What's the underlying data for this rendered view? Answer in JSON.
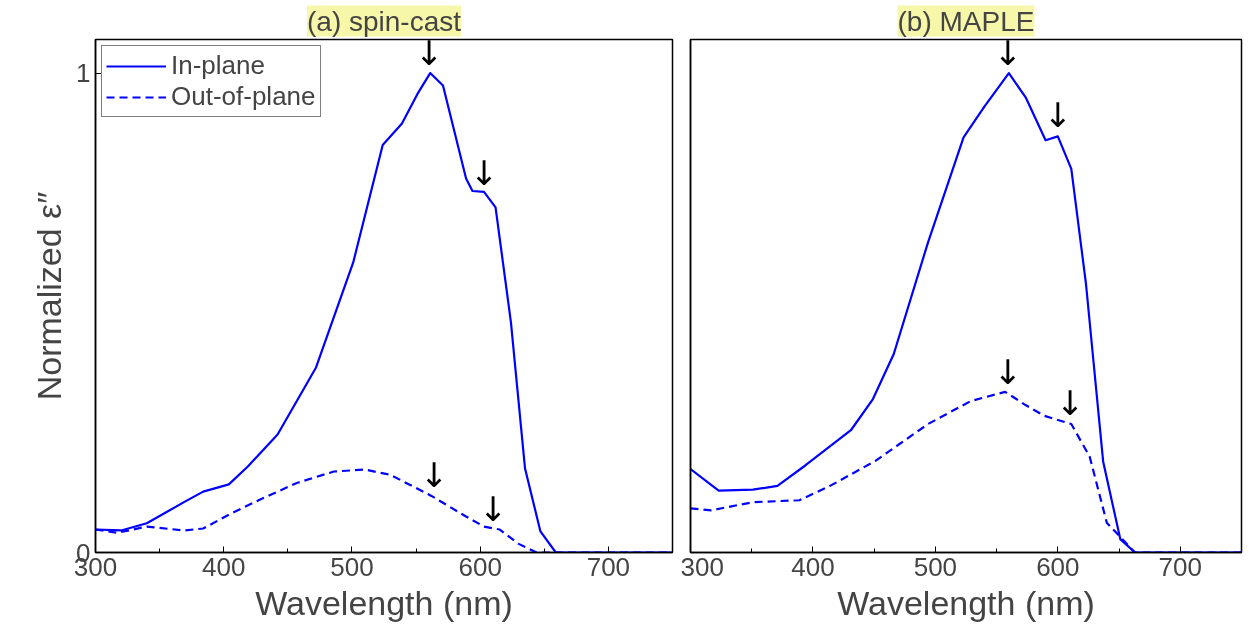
{
  "chart_data": [
    {
      "type": "line",
      "title": "(a) spin-cast",
      "xlabel": "Wavelength (nm)",
      "ylabel": "Normalized ε″",
      "xlim": [
        300,
        750
      ],
      "xticks": [
        300,
        400,
        500,
        600,
        700
      ],
      "ylim": [
        0,
        1.07
      ],
      "yticks": [
        0,
        1
      ],
      "legend": "top left",
      "grid": false,
      "series": [
        {
          "name": "In-plane",
          "color": "#0000ff",
          "line_style": "solid",
          "x": [
            300,
            320,
            340,
            369,
            384,
            404,
            419,
            442,
            472,
            501,
            524,
            539,
            551,
            561,
            571,
            589,
            594,
            603,
            612,
            624,
            635,
            647,
            659,
            700,
            750
          ],
          "values": [
            0.048,
            0.046,
            0.061,
            0.105,
            0.127,
            0.142,
            0.18,
            0.246,
            0.386,
            0.605,
            0.85,
            0.895,
            0.956,
            1.0,
            0.974,
            0.78,
            0.754,
            0.752,
            0.72,
            0.48,
            0.175,
            0.044,
            0,
            0,
            0
          ]
        },
        {
          "name": "Out-of-plane",
          "color": "#0000ff",
          "line_style": "dashed",
          "x": [
            300,
            317,
            340,
            369,
            384,
            404,
            428,
            457,
            486,
            510,
            530,
            562,
            589,
            603,
            615,
            630,
            644,
            700,
            750
          ],
          "values": [
            0.048,
            0.041,
            0.054,
            0.046,
            0.05,
            0.079,
            0.11,
            0.145,
            0.169,
            0.173,
            0.162,
            0.118,
            0.075,
            0.054,
            0.048,
            0.018,
            0,
            0,
            0
          ]
        }
      ],
      "annotations": [
        {
          "text": "↓",
          "x": 560,
          "y": 1.0
        },
        {
          "text": "↓",
          "x": 603,
          "y": 0.75
        },
        {
          "text": "↓",
          "x": 564,
          "y": 0.12
        },
        {
          "text": "↓",
          "x": 610,
          "y": 0.05
        }
      ]
    },
    {
      "type": "line",
      "title": "(b) MAPLE",
      "xlabel": "Wavelength (nm)",
      "xlim": [
        300,
        750
      ],
      "xticks": [
        300,
        400,
        500,
        600,
        700
      ],
      "ylim": [
        0,
        1.07
      ],
      "tick_labels": "x",
      "legend": false,
      "grid": false,
      "series": [
        {
          "color": "#0000ff",
          "line_style": "solid",
          "x": [
            300,
            323,
            351,
            371,
            394,
            431,
            449,
            466,
            494,
            523,
            540,
            560,
            574,
            590,
            600,
            611,
            623,
            637,
            651,
            663,
            700,
            750
          ],
          "values": [
            0.174,
            0.129,
            0.131,
            0.139,
            0.182,
            0.255,
            0.32,
            0.414,
            0.647,
            0.866,
            0.93,
            1.0,
            0.948,
            0.86,
            0.868,
            0.8,
            0.56,
            0.19,
            0.028,
            0,
            0,
            0
          ]
        },
        {
          "color": "#0000ff",
          "line_style": "dashed",
          "x": [
            300,
            317,
            351,
            389,
            414,
            451,
            494,
            529,
            557,
            574,
            589,
            611,
            626,
            640,
            663,
            700,
            750
          ],
          "values": [
            0.092,
            0.088,
            0.105,
            0.109,
            0.139,
            0.191,
            0.268,
            0.316,
            0.335,
            0.307,
            0.285,
            0.268,
            0.2,
            0.062,
            0,
            0,
            0
          ]
        }
      ],
      "annotations": [
        {
          "text": "↓",
          "x": 559,
          "y": 1.0
        },
        {
          "text": "↓",
          "x": 600,
          "y": 0.87
        },
        {
          "text": "↓",
          "x": 559,
          "y": 0.335
        },
        {
          "text": "↓",
          "x": 610,
          "y": 0.27
        }
      ]
    }
  ]
}
